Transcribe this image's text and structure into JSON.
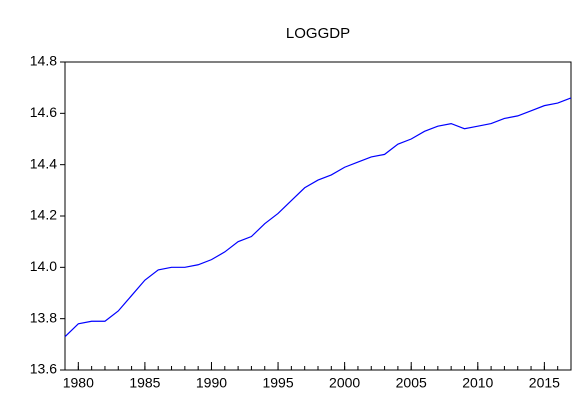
{
  "chart_data": {
    "type": "line",
    "title": "LOGGDP",
    "x": [
      1979,
      1980,
      1981,
      1982,
      1983,
      1984,
      1985,
      1986,
      1987,
      1988,
      1989,
      1990,
      1991,
      1992,
      1993,
      1994,
      1995,
      1996,
      1997,
      1998,
      1999,
      2000,
      2001,
      2002,
      2003,
      2004,
      2005,
      2006,
      2007,
      2008,
      2009,
      2010,
      2011,
      2012,
      2013,
      2014,
      2015,
      2016,
      2017
    ],
    "series": [
      {
        "name": "LOGGDP",
        "color": "#0000ff",
        "values": [
          13.73,
          13.78,
          13.79,
          13.79,
          13.83,
          13.89,
          13.95,
          13.99,
          14.0,
          14.0,
          14.01,
          14.03,
          14.06,
          14.1,
          14.12,
          14.17,
          14.21,
          14.26,
          14.31,
          14.34,
          14.36,
          14.39,
          14.41,
          14.43,
          14.44,
          14.48,
          14.5,
          14.53,
          14.55,
          14.56,
          14.54,
          14.55,
          14.56,
          14.58,
          14.59,
          14.61,
          14.63,
          14.64,
          14.66
        ]
      }
    ],
    "xlim": [
      1979,
      2017
    ],
    "xticks": [
      1980,
      1985,
      1990,
      1995,
      2000,
      2005,
      2010,
      2015
    ],
    "ylim": [
      13.6,
      14.8
    ],
    "yticks": [
      13.6,
      13.8,
      {
        "value": 14.0,
        "label": "14.0"
      },
      14.2,
      14.4,
      14.6,
      14.8
    ]
  }
}
